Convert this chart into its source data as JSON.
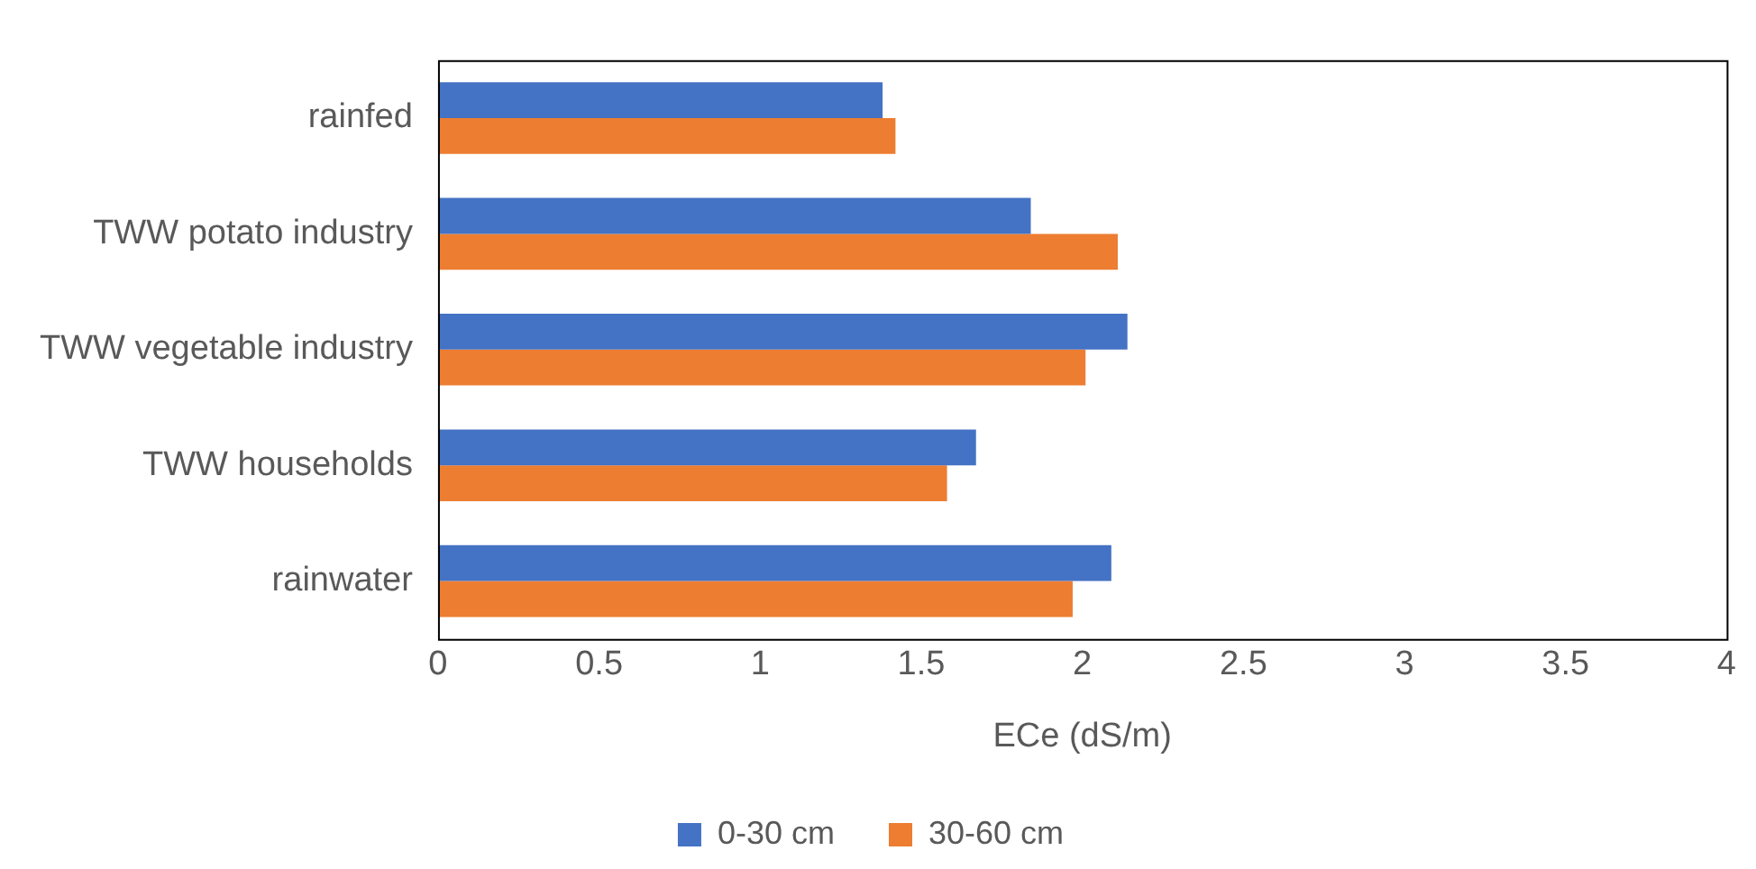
{
  "chart_data": {
    "type": "bar",
    "orientation": "horizontal",
    "xlabel": "ECe (dS/m)",
    "categories": [
      "rainfed",
      "TWW potato industry",
      "TWW vegetable industry",
      "TWW households",
      "rainwater"
    ],
    "series": [
      {
        "name": "0-30 cm",
        "color": "#4472c4",
        "values": [
          1.38,
          1.84,
          2.14,
          1.67,
          2.09
        ]
      },
      {
        "name": "30-60 cm",
        "color": "#ed7d31",
        "values": [
          1.42,
          2.11,
          2.01,
          1.58,
          1.97
        ]
      }
    ],
    "xlim": [
      0,
      4
    ],
    "xticks": [
      0,
      0.5,
      1,
      1.5,
      2,
      2.5,
      3,
      3.5,
      4
    ],
    "grid": false,
    "legend": "bottom"
  }
}
